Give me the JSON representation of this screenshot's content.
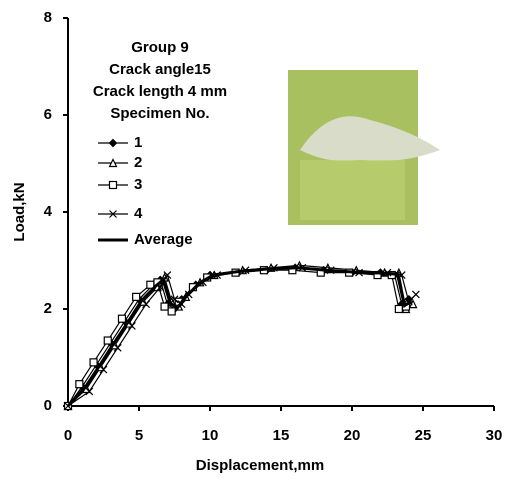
{
  "chart_data": {
    "type": "line",
    "annotations": [
      "Group 9",
      "Crack angle15",
      "Crack length  4 mm",
      "Specimen No."
    ],
    "xlabel": "Displacement,mm",
    "ylabel": "Load,kN",
    "xlim": [
      0,
      30
    ],
    "xticks": [
      0,
      5,
      10,
      15,
      20,
      25,
      30
    ],
    "ylim": [
      0,
      8
    ],
    "yticks": [
      0,
      2,
      4,
      6,
      8
    ],
    "series": [
      {
        "name": "1",
        "color": "#000000",
        "marker": "diamond",
        "x": [
          0,
          1,
          2,
          3,
          4,
          5,
          6,
          6.5,
          7,
          7.5,
          8,
          9,
          10,
          12,
          14,
          16,
          18,
          20,
          22,
          23,
          23.5,
          24
        ],
        "values": [
          0,
          0.4,
          0.85,
          1.3,
          1.75,
          2.2,
          2.5,
          2.6,
          2.1,
          2.0,
          2.2,
          2.5,
          2.7,
          2.75,
          2.8,
          2.85,
          2.8,
          2.75,
          2.75,
          2.7,
          2.1,
          2.2
        ]
      },
      {
        "name": "2",
        "color": "#000000",
        "marker": "triangle",
        "x": [
          0,
          1.3,
          2.3,
          3.3,
          4.3,
          5.3,
          6.3,
          6.8,
          7.3,
          7.8,
          8.3,
          9.3,
          10.3,
          12.3,
          14.3,
          16.3,
          18.3,
          20.3,
          22.3,
          23.3,
          23.8,
          24.3
        ],
        "values": [
          0,
          0.35,
          0.8,
          1.25,
          1.7,
          2.15,
          2.45,
          2.65,
          2.15,
          2.05,
          2.25,
          2.55,
          2.7,
          2.8,
          2.85,
          2.9,
          2.85,
          2.8,
          2.75,
          2.75,
          2.0,
          2.1
        ]
      },
      {
        "name": "3",
        "color": "#000000",
        "marker": "square",
        "x": [
          0,
          0.8,
          1.8,
          2.8,
          3.8,
          4.8,
          5.8,
          6.3,
          6.8,
          7.3,
          7.8,
          8.8,
          9.8,
          11.8,
          13.8,
          15.8,
          17.8,
          19.8,
          21.8,
          22.8,
          23.3,
          23.8
        ],
        "values": [
          0,
          0.45,
          0.9,
          1.35,
          1.8,
          2.25,
          2.5,
          2.55,
          2.05,
          1.95,
          2.15,
          2.45,
          2.65,
          2.75,
          2.8,
          2.8,
          2.75,
          2.75,
          2.7,
          2.7,
          2.0,
          2.05
        ]
      },
      {
        "name": "4",
        "color": "#000000",
        "marker": "x",
        "x": [
          0,
          1.5,
          2.5,
          3.5,
          4.5,
          5.5,
          6.5,
          7,
          7.5,
          8,
          8.5,
          9.5,
          10.5,
          12.5,
          14.5,
          16.5,
          18.5,
          20.5,
          22.5,
          23.5,
          24,
          24.5
        ],
        "values": [
          0,
          0.3,
          0.75,
          1.2,
          1.65,
          2.1,
          2.45,
          2.7,
          2.2,
          2.1,
          2.3,
          2.55,
          2.7,
          2.8,
          2.85,
          2.85,
          2.8,
          2.75,
          2.75,
          2.7,
          2.15,
          2.3
        ]
      },
      {
        "name": "Average",
        "color": "#000000",
        "marker": "none",
        "width": 3,
        "x": [
          0,
          1.2,
          2.2,
          3.2,
          4.2,
          5.2,
          6.2,
          6.7,
          7.2,
          7.7,
          8.2,
          9.2,
          10.2,
          12.2,
          14.2,
          16.2,
          18.2,
          20.2,
          22.2,
          23.2,
          23.7,
          24.2
        ],
        "values": [
          0,
          0.38,
          0.82,
          1.28,
          1.72,
          2.18,
          2.48,
          2.6,
          2.12,
          2.02,
          2.22,
          2.52,
          2.7,
          2.78,
          2.83,
          2.85,
          2.8,
          2.76,
          2.74,
          2.72,
          2.07,
          2.16
        ]
      }
    ]
  }
}
